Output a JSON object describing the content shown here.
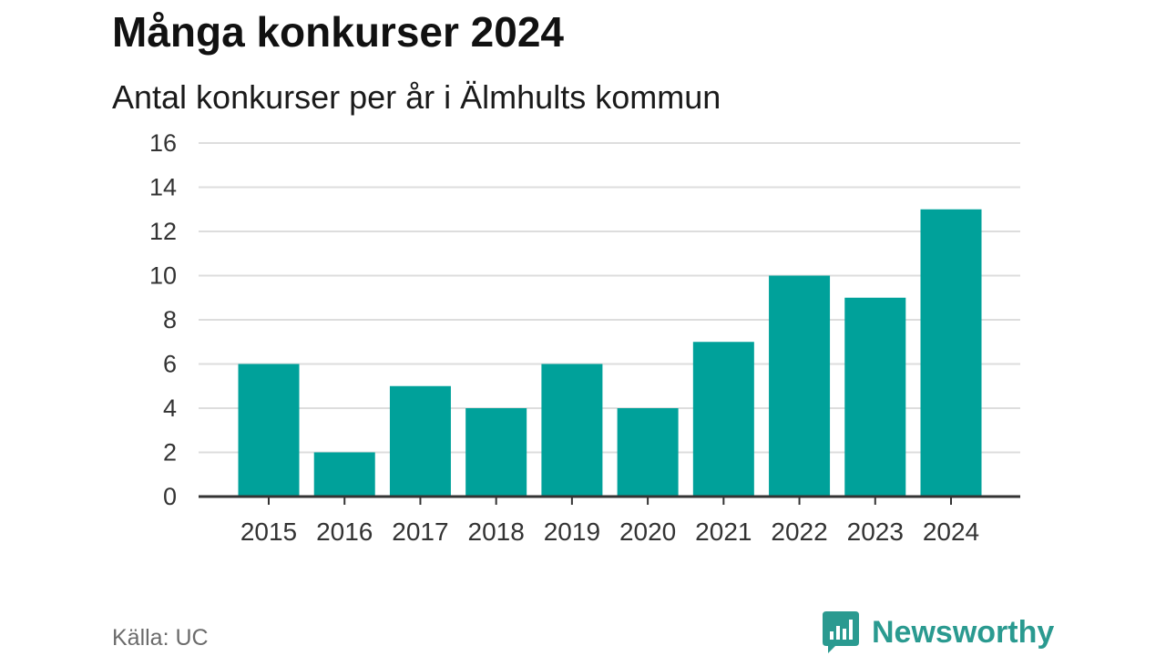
{
  "header": {
    "title": "Många konkurser 2024",
    "subtitle": "Antal konkurser per år i Älmhults kommun"
  },
  "footer": {
    "source": "Källa: UC",
    "brand": "Newsworthy",
    "brand_icon": "newsworthy-logo-icon"
  },
  "colors": {
    "bar": "#00a19a",
    "grid": "#dddddd",
    "axis": "#333333",
    "brand": "#2a9a90"
  },
  "chart_data": {
    "type": "bar",
    "categories": [
      "2015",
      "2016",
      "2017",
      "2018",
      "2019",
      "2020",
      "2021",
      "2022",
      "2023",
      "2024"
    ],
    "values": [
      6,
      2,
      5,
      4,
      6,
      4,
      7,
      10,
      9,
      13
    ],
    "ylim": [
      0,
      16
    ],
    "yticks": [
      0,
      2,
      4,
      6,
      8,
      10,
      12,
      14,
      16
    ],
    "grid": true,
    "title": "Många konkurser 2024",
    "subtitle": "Antal konkurser per år i Älmhults kommun",
    "xlabel": "",
    "ylabel": ""
  }
}
